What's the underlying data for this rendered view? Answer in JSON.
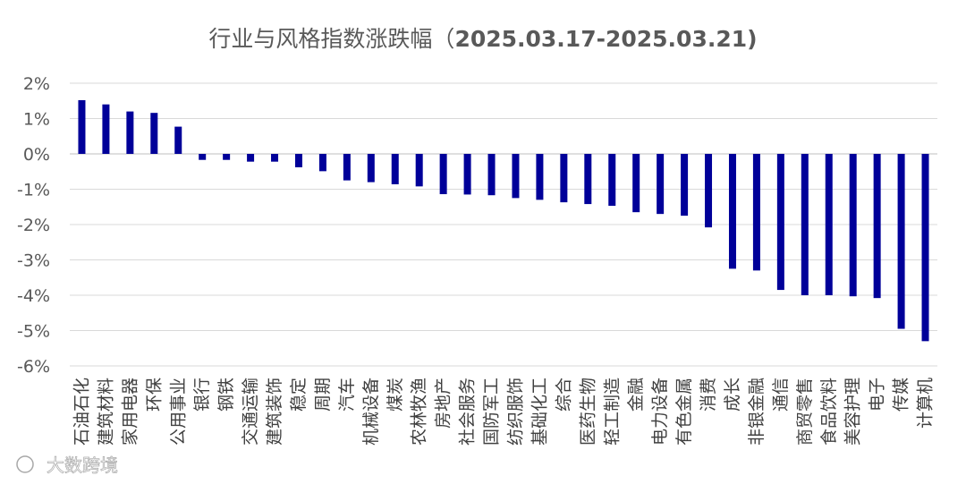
{
  "chart_data": {
    "type": "bar",
    "title": "行业与风格指数涨跌幅（",
    "title_dates": "2025.03.17-2025.03.21)",
    "ylim": [
      -6,
      2
    ],
    "ytick_values": [
      2,
      1,
      0,
      -1,
      -2,
      -3,
      -4,
      -5,
      -6
    ],
    "ytick_labels": [
      "2%",
      "1%",
      "0%",
      "-1%",
      "-2%",
      "-3%",
      "-4%",
      "-5%",
      "-6%"
    ],
    "grid": true,
    "bar_color": "#000099",
    "categories": [
      "石油石化",
      "建筑材料",
      "家用电器",
      "环保",
      "公用事业",
      "银行",
      "钢铁",
      "交通运输",
      "建筑装饰",
      "稳定",
      "周期",
      "汽车",
      "机械设备",
      "煤炭",
      "农林牧渔",
      "房地产",
      "社会服务",
      "国防军工",
      "纺织服饰",
      "基础化工",
      "综合",
      "医药生物",
      "轻工制造",
      "金融",
      "电力设备",
      "有色金属",
      "消费",
      "成长",
      "非银金融",
      "通信",
      "商贸零售",
      "食品饮料",
      "美容护理",
      "电子",
      "传媒",
      "计算机"
    ],
    "values": [
      1.52,
      1.4,
      1.2,
      1.16,
      0.77,
      -0.17,
      -0.17,
      -0.22,
      -0.22,
      -0.38,
      -0.49,
      -0.75,
      -0.8,
      -0.86,
      -0.92,
      -1.14,
      -1.15,
      -1.17,
      -1.25,
      -1.3,
      -1.37,
      -1.42,
      -1.47,
      -1.65,
      -1.7,
      -1.75,
      -2.08,
      -3.25,
      -3.3,
      -3.85,
      -4.0,
      -4.0,
      -4.03,
      -4.08,
      -4.95,
      -5.3
    ]
  },
  "watermark": {
    "text": "大数跨境",
    "icon": "camera-lens-icon"
  }
}
